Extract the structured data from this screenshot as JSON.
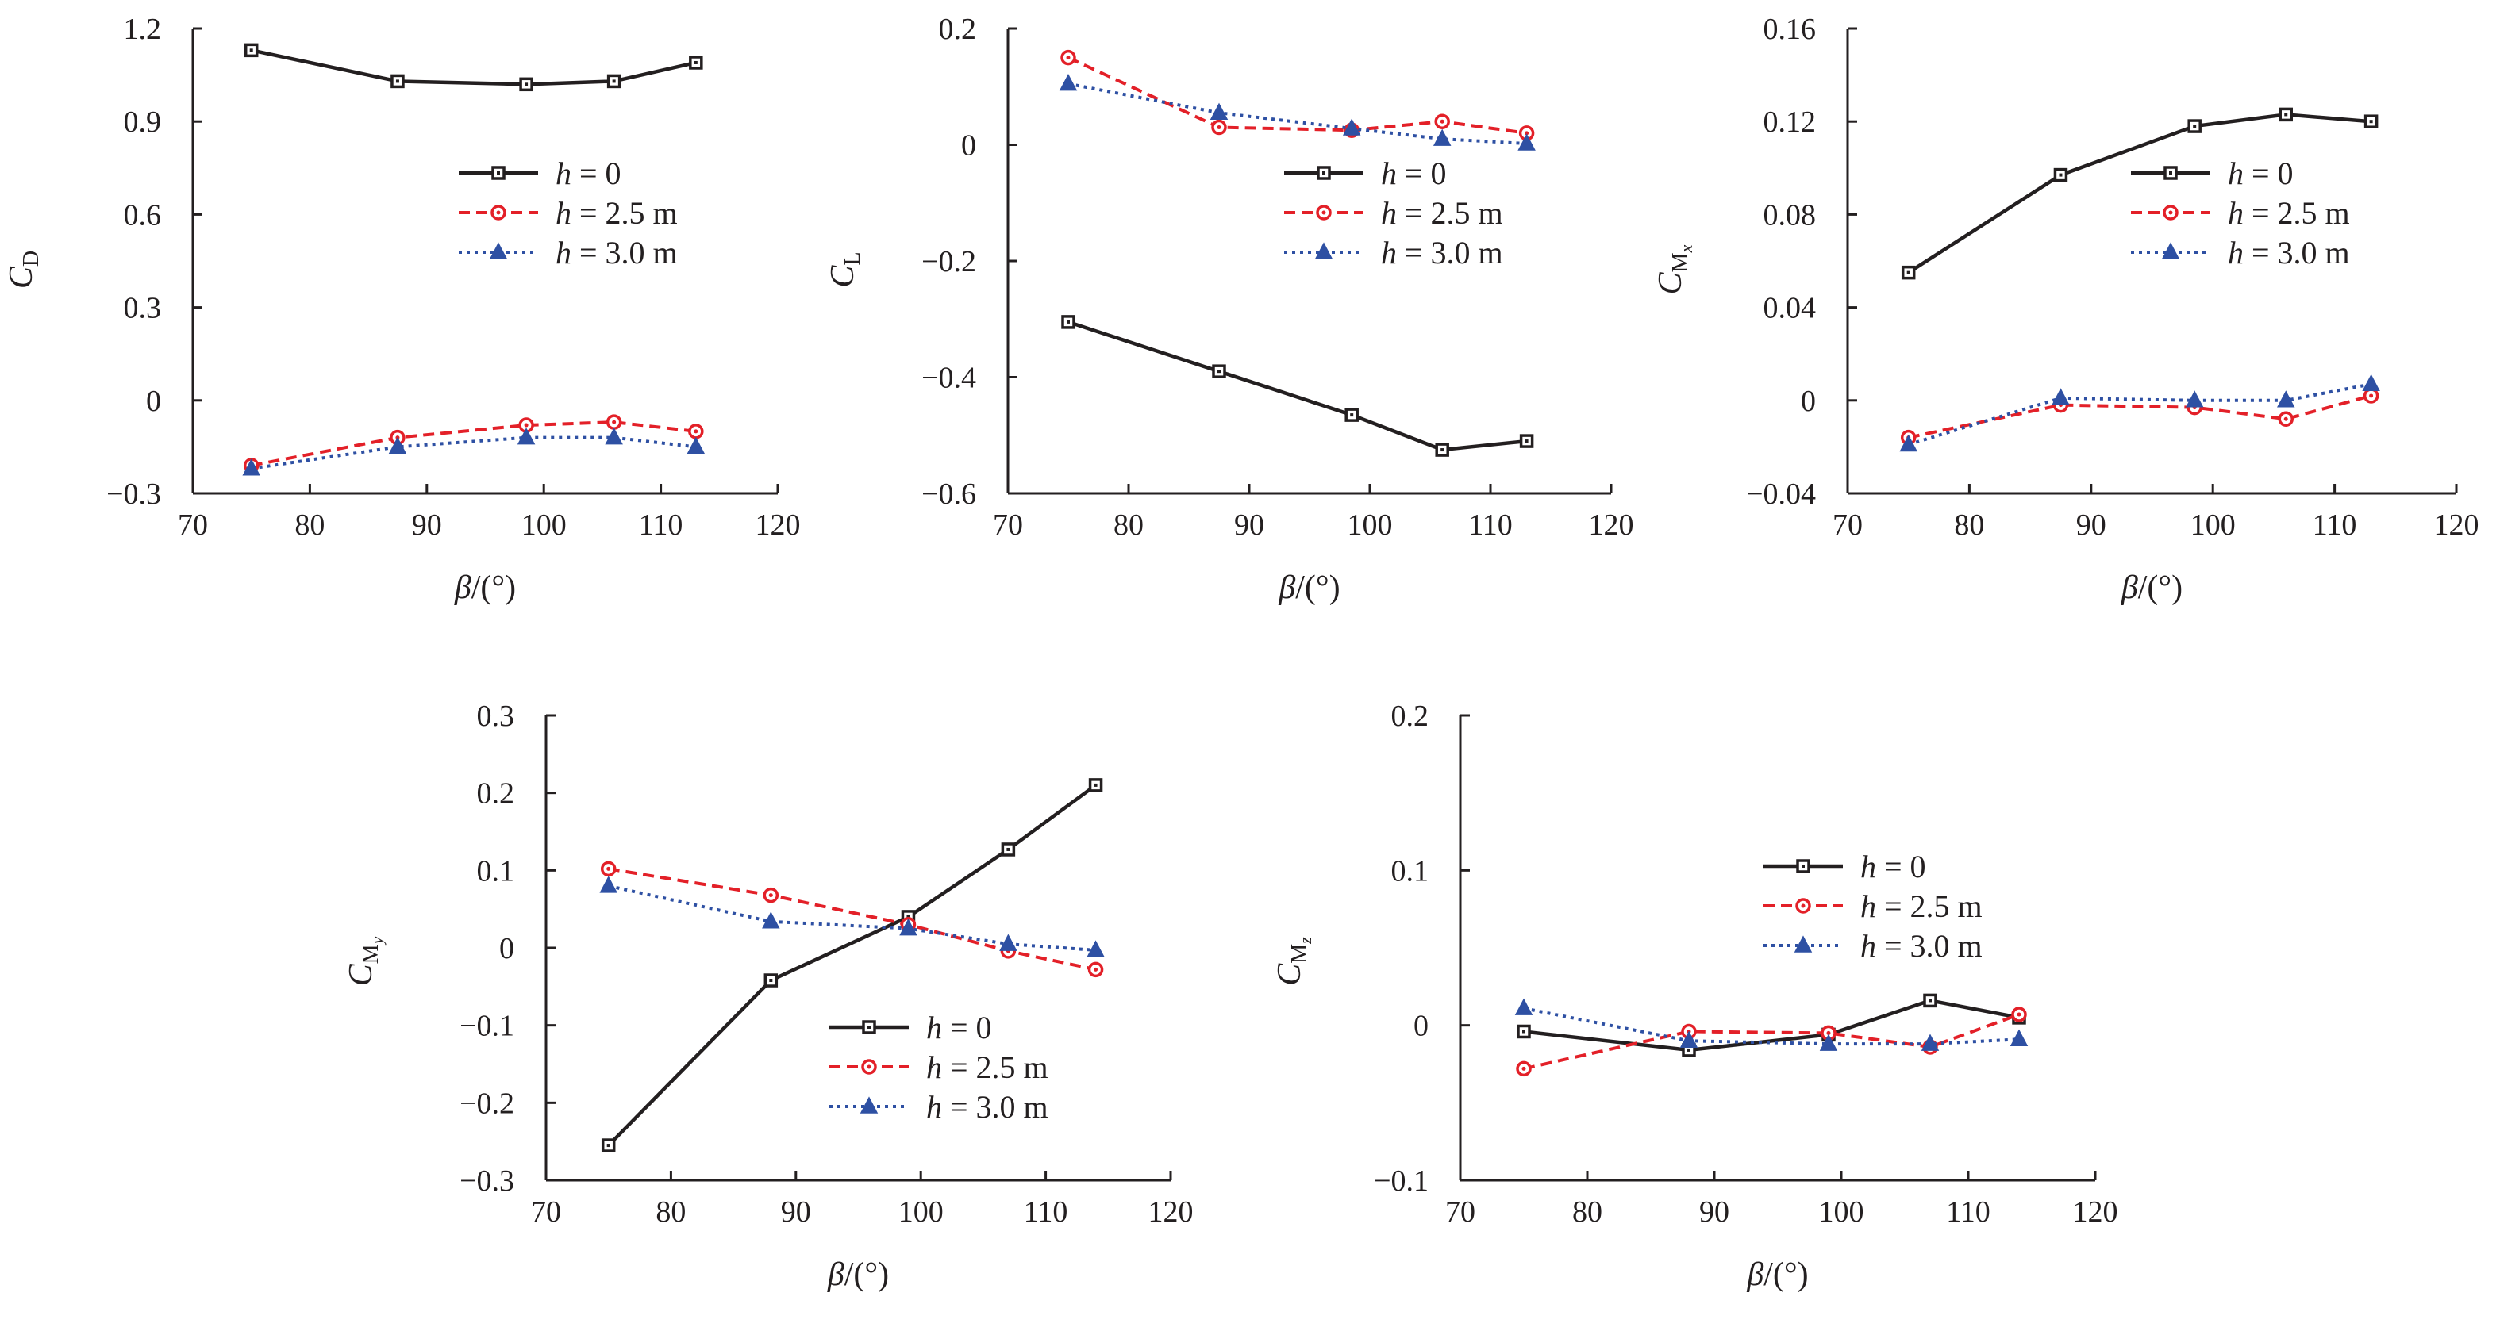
{
  "chart_data": [
    {
      "type": "line",
      "ylabel": "C_D",
      "xlabel": "β/(°)",
      "xlim": [
        70,
        120
      ],
      "ylim": [
        -0.3,
        1.2
      ],
      "xticks": [
        "70",
        "80",
        "90",
        "100",
        "110",
        "120"
      ],
      "yticks": [
        "1.2",
        "0.9",
        "0.6",
        "0.3",
        "0",
        "−0.3"
      ],
      "x": [
        75,
        87.5,
        98.5,
        106,
        113
      ],
      "series": [
        {
          "name": "h = 0",
          "values": [
            1.13,
            1.03,
            1.02,
            1.03,
            1.09
          ]
        },
        {
          "name": "h = 2.5 m",
          "values": [
            -0.21,
            -0.12,
            -0.08,
            -0.07,
            -0.1
          ]
        },
        {
          "name": "h = 3.0 m",
          "values": [
            -0.22,
            -0.15,
            -0.12,
            -0.12,
            -0.15
          ]
        }
      ],
      "legend": "right"
    },
    {
      "type": "line",
      "ylabel": "C_L",
      "xlabel": "β/(°)",
      "xlim": [
        70,
        120
      ],
      "ylim": [
        -0.6,
        0.2
      ],
      "xticks": [
        "70",
        "80",
        "90",
        "100",
        "110",
        "120"
      ],
      "yticks": [
        "0.2",
        "0",
        "−0.2",
        "−0.4",
        "−0.6"
      ],
      "x": [
        75,
        87.5,
        98.5,
        106,
        113
      ],
      "series": [
        {
          "name": "h = 0",
          "values": [
            -0.305,
            -0.39,
            -0.465,
            -0.525,
            -0.51
          ]
        },
        {
          "name": "h = 2.5 m",
          "values": [
            0.15,
            0.03,
            0.025,
            0.04,
            0.02
          ]
        },
        {
          "name": "h = 3.0 m",
          "values": [
            0.105,
            0.055,
            0.028,
            0.01,
            0.002
          ]
        }
      ],
      "legend": "right"
    },
    {
      "type": "line",
      "ylabel": "C_Mx",
      "xlabel": "β/(°)",
      "xlim": [
        70,
        120
      ],
      "ylim": [
        -0.04,
        0.16
      ],
      "xticks": [
        "70",
        "80",
        "90",
        "100",
        "110",
        "120"
      ],
      "yticks": [
        "0.16",
        "0.12",
        "0.08",
        "0.04",
        "0",
        "−0.04"
      ],
      "x": [
        75,
        87.5,
        98.5,
        106,
        113
      ],
      "series": [
        {
          "name": "h = 0",
          "values": [
            0.055,
            0.097,
            0.118,
            0.123,
            0.12
          ]
        },
        {
          "name": "h = 2.5 m",
          "values": [
            -0.016,
            -0.002,
            -0.003,
            -0.008,
            0.002
          ]
        },
        {
          "name": "h = 3.0 m",
          "values": [
            -0.019,
            0.001,
            0.0,
            0.0,
            0.007
          ]
        }
      ],
      "legend": "right"
    },
    {
      "type": "line",
      "ylabel": "C_My",
      "xlabel": "β/(°)",
      "xlim": [
        70,
        120
      ],
      "ylim": [
        -0.3,
        0.3
      ],
      "xticks": [
        "70",
        "80",
        "90",
        "100",
        "110",
        "120"
      ],
      "yticks": [
        "0.3",
        "0.2",
        "0.1",
        "0",
        "−0.1",
        "−0.2",
        "−0.3"
      ],
      "x": [
        75,
        88,
        99,
        107,
        114
      ],
      "series": [
        {
          "name": "h = 0",
          "values": [
            -0.255,
            -0.042,
            0.04,
            0.127,
            0.21
          ]
        },
        {
          "name": "h = 2.5 m",
          "values": [
            0.102,
            0.068,
            0.03,
            -0.004,
            -0.028
          ]
        },
        {
          "name": "h = 3.0 m",
          "values": [
            0.08,
            0.034,
            0.025,
            0.005,
            -0.003
          ]
        }
      ],
      "legend": "bottom-right"
    },
    {
      "type": "line",
      "ylabel": "C_Mz",
      "xlabel": "β/(°)",
      "xlim": [
        70,
        120
      ],
      "ylim": [
        -0.1,
        0.2
      ],
      "xticks": [
        "70",
        "80",
        "90",
        "100",
        "110",
        "120"
      ],
      "yticks": [
        "0.2",
        "0.1",
        "0",
        "−0.1"
      ],
      "x": [
        75,
        88,
        99,
        107,
        114
      ],
      "series": [
        {
          "name": "h = 0",
          "values": [
            -0.004,
            -0.016,
            -0.006,
            0.016,
            0.005
          ]
        },
        {
          "name": "h = 2.5 m",
          "values": [
            -0.028,
            -0.004,
            -0.005,
            -0.014,
            0.007
          ]
        },
        {
          "name": "h = 3.0 m",
          "values": [
            0.011,
            -0.01,
            -0.012,
            -0.012,
            -0.009
          ]
        }
      ],
      "legend": "top-right"
    }
  ],
  "legend_labels": {
    "h0": "= 0",
    "h25": "= 2.5 m",
    "h30": "= 3.0 m",
    "h_symbol": "h"
  },
  "xlabel": {
    "beta": "β",
    "unit": "/(°)"
  },
  "ylabels": {
    "base": "C",
    "subs": [
      "D",
      "L",
      "Mx",
      "My",
      "Mz"
    ]
  },
  "colors": {
    "h0": "#231f20",
    "h25": "#e32028",
    "h30": "#2e50a3",
    "axis": "#231f20"
  }
}
